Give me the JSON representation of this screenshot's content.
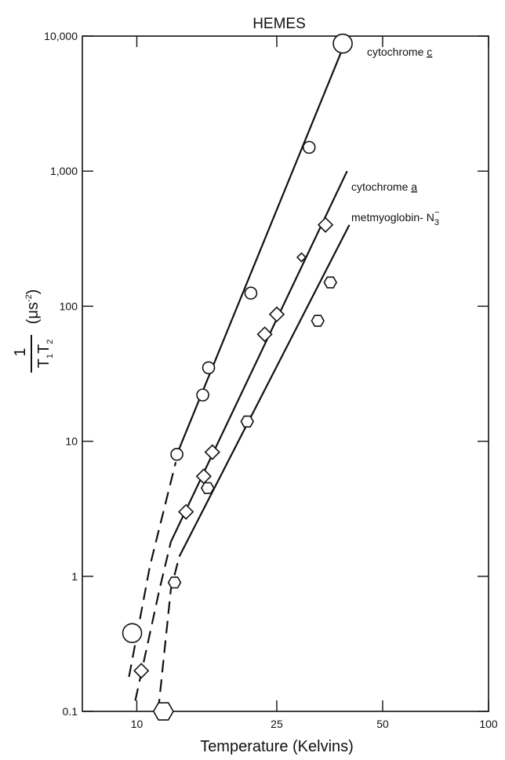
{
  "chart_data": {
    "type": "scatter",
    "title": "HEMES",
    "xlabel": "Temperature (Kelvins)",
    "ylabel": "1/(T1T2) (μs⁻²)",
    "ylabel_parts": {
      "numerator": "1",
      "denominator_base_1": "T",
      "denominator_sub_1": "1",
      "denominator_base_2": "T",
      "denominator_sub_2": "2",
      "unit_open": "(",
      "unit_mu": "μ",
      "unit_s": "s",
      "unit_exp": "-2",
      "unit_close": ")"
    },
    "x_scale": "log",
    "y_scale": "log",
    "xlim": [
      7,
      100
    ],
    "ylim": [
      0.1,
      10000
    ],
    "x_ticks": [
      {
        "value": 10,
        "label": "10"
      },
      {
        "value": 25,
        "label": "25"
      },
      {
        "value": 50,
        "label": "50"
      },
      {
        "value": 100,
        "label": "100"
      }
    ],
    "y_ticks": [
      {
        "value": 0.1,
        "label": "0.1"
      },
      {
        "value": 1,
        "label": "1"
      },
      {
        "value": 10,
        "label": "10"
      },
      {
        "value": 100,
        "label": "100"
      },
      {
        "value": 1000,
        "label": "1,000"
      },
      {
        "value": 10000,
        "label": "10,000"
      }
    ],
    "grid": false,
    "series": [
      {
        "name": "cytochrome c",
        "label_base": "cytochrome ",
        "label_letter": "c",
        "marker": "circle",
        "points": [
          {
            "x": 9.7,
            "y": 0.38,
            "size": "large"
          },
          {
            "x": 13.0,
            "y": 8.0,
            "size": "normal"
          },
          {
            "x": 15.4,
            "y": 22,
            "size": "normal"
          },
          {
            "x": 16.0,
            "y": 35,
            "size": "normal"
          },
          {
            "x": 21.1,
            "y": 125,
            "size": "normal"
          },
          {
            "x": 30.9,
            "y": 1500,
            "size": "normal"
          },
          {
            "x": 38.5,
            "y": 8800,
            "size": "large"
          }
        ],
        "fit_solid": [
          [
            13.0,
            8.0
          ],
          [
            38.4,
            8000
          ]
        ],
        "fit_dashed": [
          [
            9.5,
            0.18
          ],
          [
            10.9,
            1.2
          ],
          [
            12.9,
            7.0
          ]
        ]
      },
      {
        "name": "cytochrome a",
        "label_base": "cytochrome ",
        "label_letter": "a",
        "marker": "diamond",
        "points": [
          {
            "x": 10.3,
            "y": 0.2,
            "size": "normal"
          },
          {
            "x": 13.8,
            "y": 3.0,
            "size": "normal"
          },
          {
            "x": 15.5,
            "y": 5.5,
            "size": "normal"
          },
          {
            "x": 16.4,
            "y": 8.3,
            "size": "normal"
          },
          {
            "x": 23.1,
            "y": 62,
            "size": "normal"
          },
          {
            "x": 25.0,
            "y": 87,
            "size": "normal"
          },
          {
            "x": 29.4,
            "y": 230,
            "size": "small"
          },
          {
            "x": 34.4,
            "y": 400,
            "size": "normal"
          }
        ],
        "fit_solid": [
          [
            12.5,
            1.8
          ],
          [
            39.6,
            1000
          ]
        ],
        "fit_dashed": [
          [
            9.9,
            0.12
          ],
          [
            11.6,
            0.8
          ],
          [
            12.5,
            1.8
          ]
        ]
      },
      {
        "name": "metmyoglobin-N3-",
        "label_base": "metmyoglobin- N",
        "label_sub": "3",
        "label_sup": "−",
        "marker": "hexagon",
        "points": [
          {
            "x": 11.9,
            "y": 0.1,
            "size": "large"
          },
          {
            "x": 12.8,
            "y": 0.9,
            "size": "normal"
          },
          {
            "x": 15.9,
            "y": 4.5,
            "size": "normal"
          },
          {
            "x": 20.6,
            "y": 14,
            "size": "normal"
          },
          {
            "x": 32.7,
            "y": 78,
            "size": "normal"
          },
          {
            "x": 35.5,
            "y": 150,
            "size": "normal"
          }
        ],
        "fit_solid": [
          [
            13.2,
            1.4
          ],
          [
            40.2,
            400
          ]
        ],
        "fit_dashed": [
          [
            11.5,
            0.1
          ],
          [
            12.5,
            0.8
          ],
          [
            13.2,
            1.4
          ]
        ]
      }
    ]
  }
}
